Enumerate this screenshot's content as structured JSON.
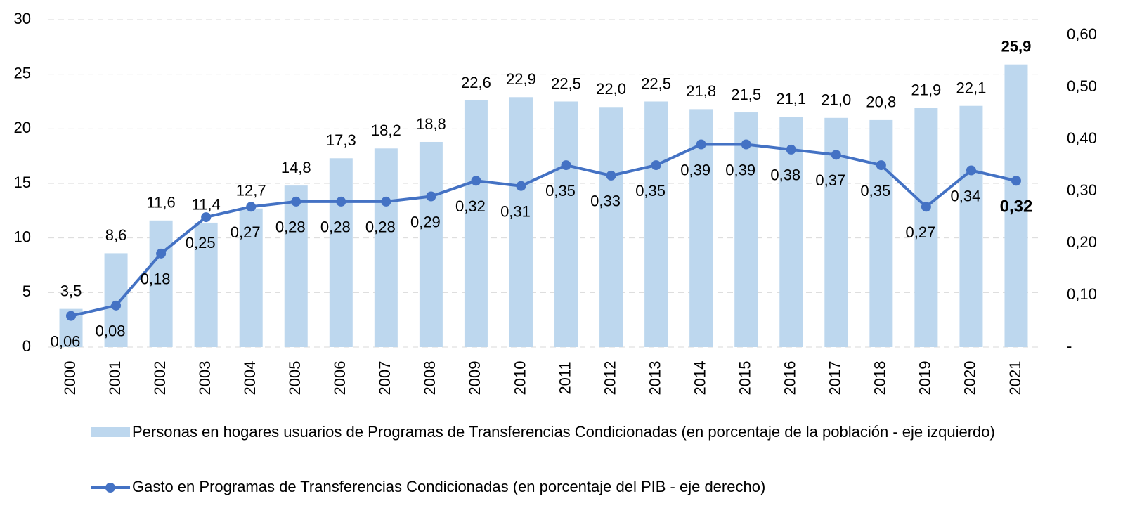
{
  "chart_data": {
    "type": "bar_line",
    "categories": [
      "2000",
      "2001",
      "2002",
      "2003",
      "2004",
      "2005",
      "2006",
      "2007",
      "2008",
      "2009",
      "2010",
      "2011",
      "2012",
      "2013",
      "2014",
      "2015",
      "2016",
      "2017",
      "2018",
      "2019",
      "2020",
      "2021"
    ],
    "series": [
      {
        "name": "Personas en hogares usuarios de Programas de Transferencias Condicionadas (en porcentaje de la población - eje izquierdo)",
        "type": "bar",
        "color": "#bdd7ee",
        "values": [
          3.5,
          8.6,
          11.6,
          11.4,
          12.7,
          14.8,
          17.3,
          18.2,
          18.8,
          22.6,
          22.9,
          22.5,
          22.0,
          22.5,
          21.8,
          21.5,
          21.1,
          21.0,
          20.8,
          21.9,
          22.1,
          25.9
        ],
        "value_labels": [
          "3,5",
          "8,6",
          "11,6",
          "11,4",
          "12,7",
          "14,8",
          "17,3",
          "18,2",
          "18,8",
          "22,6",
          "22,9",
          "22,5",
          "22,0",
          "22,5",
          "21,8",
          "21,5",
          "21,1",
          "21,0",
          "20,8",
          "21,9",
          "22,1",
          "25,9"
        ]
      },
      {
        "name": "Gasto en Programas de Transferencias Condicionadas (en porcentaje del PIB - eje derecho)",
        "type": "line",
        "axis": "y2",
        "color": "#4472c4",
        "values": [
          0.06,
          0.08,
          0.18,
          0.25,
          0.27,
          0.28,
          0.28,
          0.28,
          0.29,
          0.32,
          0.31,
          0.35,
          0.33,
          0.35,
          0.39,
          0.39,
          0.38,
          0.37,
          0.35,
          0.27,
          0.34,
          0.32
        ],
        "value_labels": [
          "0,06",
          "0,08",
          "0,18",
          "0,25",
          "0,27",
          "0,28",
          "0,28",
          "0,28",
          "0,29",
          "0,32",
          "0,31",
          "0,35",
          "0,33",
          "0,35",
          "0,39",
          "0,39",
          "0,38",
          "0,37",
          "0,35",
          "0,27",
          "0,34",
          "0,32"
        ]
      }
    ],
    "ylim": [
      0,
      30
    ],
    "yticks": [
      0,
      5,
      10,
      15,
      20,
      25,
      30
    ],
    "y2lim": [
      0,
      0.63
    ],
    "y2ticks": [
      {
        "value": 0,
        "label": "-"
      },
      {
        "value": 0.1,
        "label": "0,10"
      },
      {
        "value": 0.2,
        "label": "0,20"
      },
      {
        "value": 0.3,
        "label": "0,30"
      },
      {
        "value": 0.4,
        "label": "0,40"
      },
      {
        "value": 0.5,
        "label": "0,50"
      },
      {
        "value": 0.6,
        "label": "0,60"
      }
    ],
    "grid": true
  }
}
